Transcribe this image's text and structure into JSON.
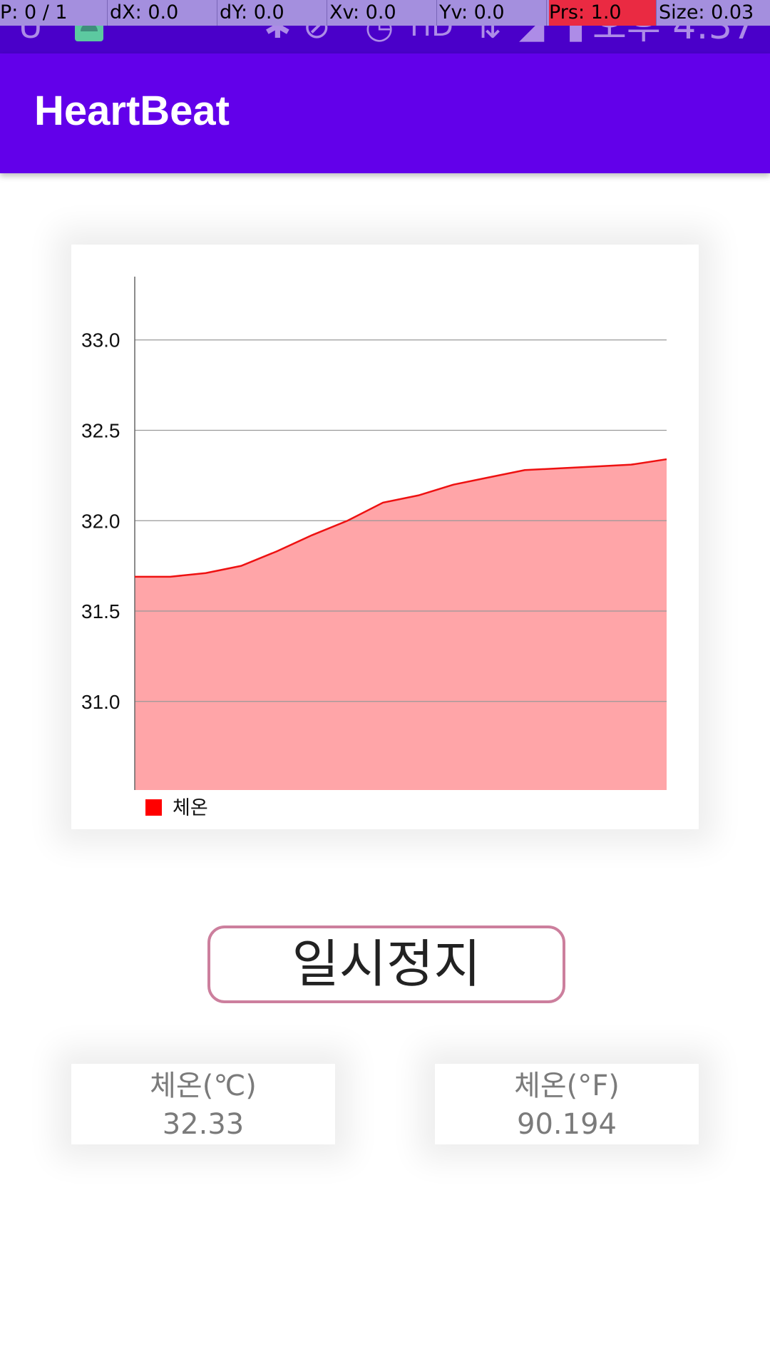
{
  "status_bar": {
    "pointer_info": {
      "p": "P: 0 / 1",
      "dx": "dX: 0.0",
      "dy": "dY: 0.0",
      "xv": "Xv: 0.0",
      "yv": "Yv: 0.0",
      "prs": "Prs: 1.0",
      "size": "Size: 0.03"
    },
    "time": "오후 4:37",
    "icons": [
      "app-icon",
      "android-icon",
      "bluetooth-icon",
      "vibrate-icon",
      "alarm-icon",
      "hd-icon",
      "data-arrows-icon",
      "signal-icon",
      "battery-icon"
    ]
  },
  "app_bar": {
    "title": "HeartBeat",
    "color": "#6200ea"
  },
  "chart_data": {
    "type": "area",
    "x": [
      0,
      1,
      2,
      3,
      4,
      5,
      6,
      7,
      8,
      9,
      10,
      11,
      12,
      13,
      14,
      15
    ],
    "series": [
      {
        "name": "체온",
        "values": [
          31.69,
          31.69,
          31.71,
          31.75,
          31.83,
          31.92,
          32.0,
          32.1,
          32.14,
          32.2,
          32.24,
          32.28,
          32.29,
          32.3,
          32.31,
          32.34
        ],
        "line_color": "#ee1111",
        "fill_color": "#ffa5a8"
      }
    ],
    "yticks": [
      "31.0",
      "31.5",
      "32.0",
      "32.5",
      "33.0"
    ],
    "ylim": [
      30.51,
      33.35
    ],
    "legend": {
      "position": "bottom-left",
      "color": "#ff0000"
    },
    "grid": true
  },
  "pause_button": {
    "label": "일시정지",
    "border_color": "#cc7f9d"
  },
  "readouts": {
    "celsius": {
      "label": "체온(℃)",
      "value": "32.33"
    },
    "fahrenheit": {
      "label": "체온(°F)",
      "value": "90.194"
    }
  }
}
